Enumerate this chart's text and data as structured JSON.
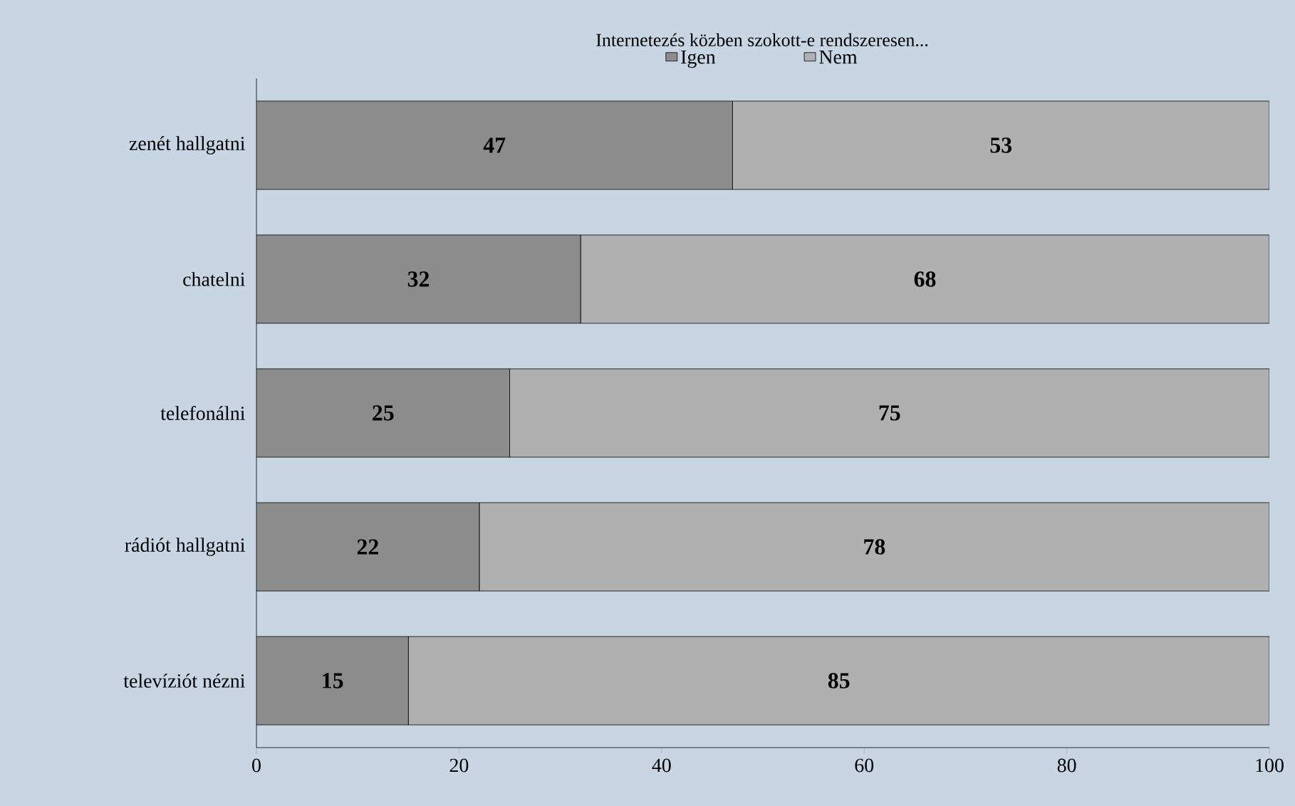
{
  "chart_data": {
    "type": "bar",
    "orientation": "horizontal",
    "stacked": true,
    "title": "Internetezés közben szokott-e rendszeresen...",
    "categories": [
      "zenét hallgatni",
      "chatelni",
      "telefonálni",
      "rádiót hallgatni",
      "televíziót nézni"
    ],
    "series": [
      {
        "name": "Igen",
        "color": "#8c8c8c",
        "values": [
          47,
          32,
          25,
          22,
          15
        ]
      },
      {
        "name": "Nem",
        "color": "#b0b0b0",
        "values": [
          53,
          68,
          75,
          78,
          85
        ]
      }
    ],
    "xlim": [
      0,
      100
    ],
    "xticks": [
      0,
      20,
      40,
      60,
      80,
      100
    ],
    "data_labels": true,
    "legend": "top",
    "grid": false
  }
}
